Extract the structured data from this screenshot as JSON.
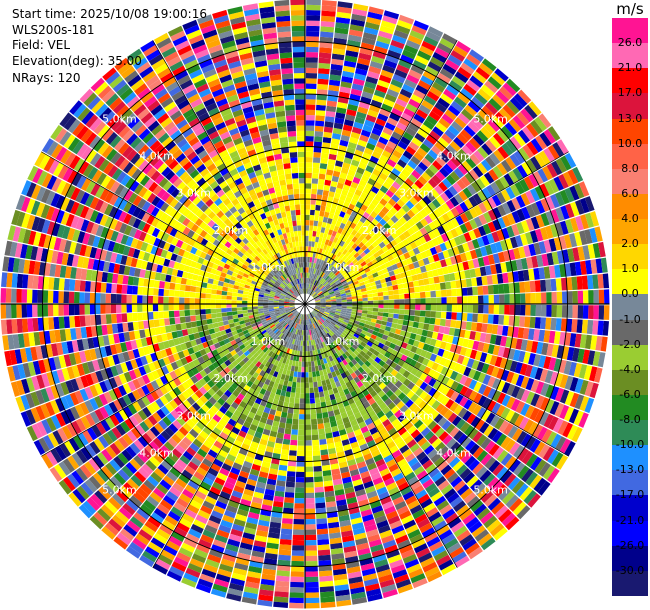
{
  "info": {
    "start_time": "Start time: 2025/10/08 19:00:16",
    "site": "WLS200s-181",
    "field": "Field: VEL",
    "elevation": "Elevation(deg): 35.00",
    "nrays": "NRays: 120"
  },
  "chart_data": {
    "type": "heatmap",
    "projection": "polar-ppi",
    "field": "VEL",
    "units": "m/s",
    "nrays": 120,
    "range_rings_km": [
      1.0,
      2.0,
      3.0,
      4.0,
      5.0
    ],
    "range_ring_labels": [
      "1.0km",
      "2.0km",
      "3.0km",
      "4.0km",
      "5.0km"
    ],
    "max_range_km": 5.8,
    "colorbar": {
      "title": "m/s",
      "ticks": [
        "26.0",
        "21.0",
        "17.0",
        "13.0",
        "10.0",
        "8.0",
        "6.0",
        "4.0",
        "2.0",
        "1.0",
        "0.0",
        "-1.0",
        "-2.0",
        "-4.0",
        "-6.0",
        "-8.0",
        "-10.0",
        "-13.0",
        "-17.0",
        "-21.0",
        "-26.0",
        "-30.0"
      ],
      "colors": [
        "#ff1493",
        "#ff69b4",
        "#ff0000",
        "#dc143c",
        "#ff4500",
        "#ff6347",
        "#fa8072",
        "#ff8c00",
        "#ffa500",
        "#ffd700",
        "#ffff00",
        "#778899",
        "#696969",
        "#9acd32",
        "#6b8e23",
        "#228b22",
        "#2e8b57",
        "#1e90ff",
        "#4169e1",
        "#0000cd",
        "#0000ff",
        "#00008b",
        "#191970"
      ]
    }
  }
}
